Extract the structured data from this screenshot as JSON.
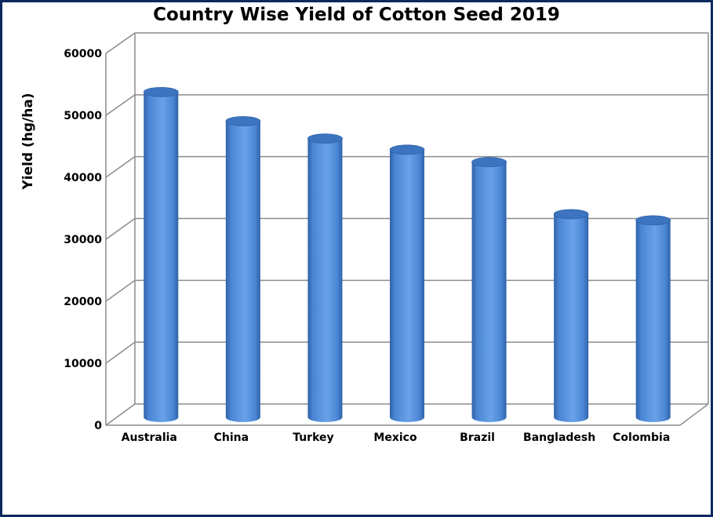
{
  "chart_data": {
    "type": "bar",
    "title": "Country Wise Yield of Cotton Seed 2019",
    "ylabel": "Yield (hg/ha)",
    "xlabel": "",
    "categories": [
      "Australia",
      "China",
      "Turkey",
      "Mexico",
      "Brazil",
      "Bangladesh",
      "Colombia"
    ],
    "values": [
      53500,
      48800,
      46000,
      44200,
      42200,
      33800,
      32800
    ],
    "ylim": [
      0,
      60000
    ],
    "yticks": [
      "0",
      "10000",
      "20000",
      "30000",
      "40000",
      "50000",
      "60000"
    ],
    "grid": true,
    "legend": "none",
    "bar_color": "#4a86d4",
    "bar_dark": "#2f63a8",
    "bar_top": "#3c74c0"
  }
}
